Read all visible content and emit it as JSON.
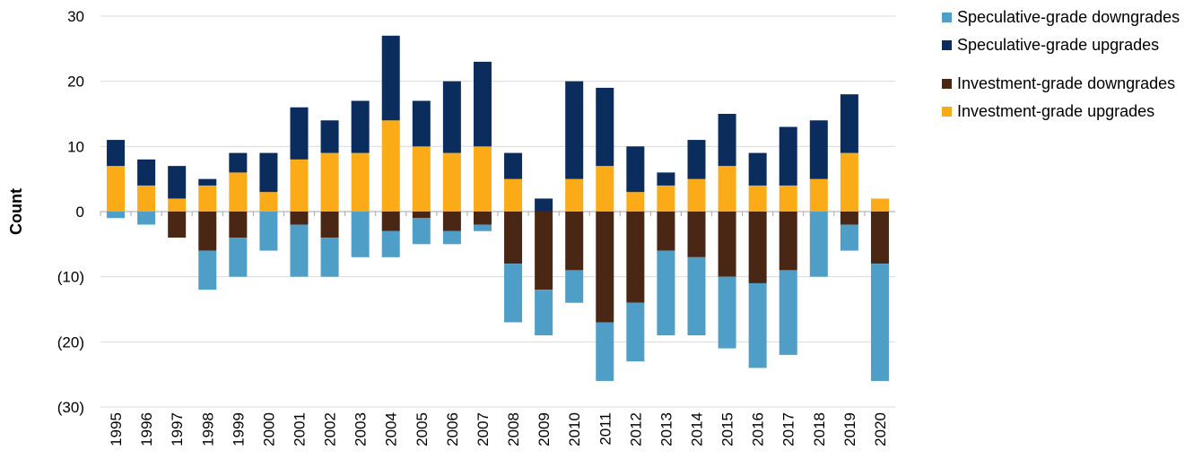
{
  "chart_data": {
    "type": "bar",
    "stacked": true,
    "ylabel": "Count",
    "categories": [
      "1995",
      "1996",
      "1997",
      "1998",
      "1999",
      "2000",
      "2001",
      "2002",
      "2003",
      "2004",
      "2005",
      "2006",
      "2007",
      "2008",
      "2009",
      "2010",
      "2011",
      "2012",
      "2013",
      "2014",
      "2015",
      "2016",
      "2017",
      "2018",
      "2019",
      "2020"
    ],
    "series": [
      {
        "name": "Speculative-grade downgrades",
        "color": "#4f9ec7",
        "values": [
          -1,
          -2,
          0,
          -6,
          -6,
          -6,
          -8,
          -6,
          -7,
          -4,
          -4,
          -2,
          -1,
          -9,
          -7,
          -5,
          -9,
          -9,
          -13,
          -12,
          -11,
          -13,
          -13,
          -10,
          -4,
          -18
        ]
      },
      {
        "name": "Speculative-grade upgrades",
        "color": "#0a2d5e",
        "values": [
          4,
          4,
          5,
          1,
          3,
          6,
          8,
          5,
          8,
          13,
          7,
          11,
          13,
          4,
          2,
          15,
          12,
          7,
          2,
          6,
          8,
          5,
          9,
          9,
          9,
          0
        ]
      },
      {
        "name": "Investment-grade downgrades",
        "color": "#4a2614",
        "values": [
          0,
          0,
          -4,
          -6,
          -4,
          0,
          -2,
          -4,
          0,
          -3,
          -1,
          -3,
          -2,
          -8,
          -12,
          -9,
          -17,
          -14,
          -6,
          -7,
          -10,
          -11,
          -9,
          0,
          -2,
          -8
        ]
      },
      {
        "name": "Investment-grade upgrades",
        "color": "#fbab18",
        "values": [
          7,
          4,
          2,
          4,
          6,
          3,
          8,
          9,
          9,
          14,
          10,
          9,
          10,
          5,
          0,
          5,
          7,
          3,
          4,
          5,
          7,
          4,
          4,
          5,
          9,
          2
        ]
      }
    ],
    "ylim": [
      -30,
      30
    ],
    "yticks": [
      30,
      20,
      10,
      0,
      {
        "value": -10,
        "label": "(10)"
      },
      {
        "value": -20,
        "label": "(20)"
      },
      {
        "value": -30,
        "label": "(30)"
      }
    ],
    "grid": true
  }
}
